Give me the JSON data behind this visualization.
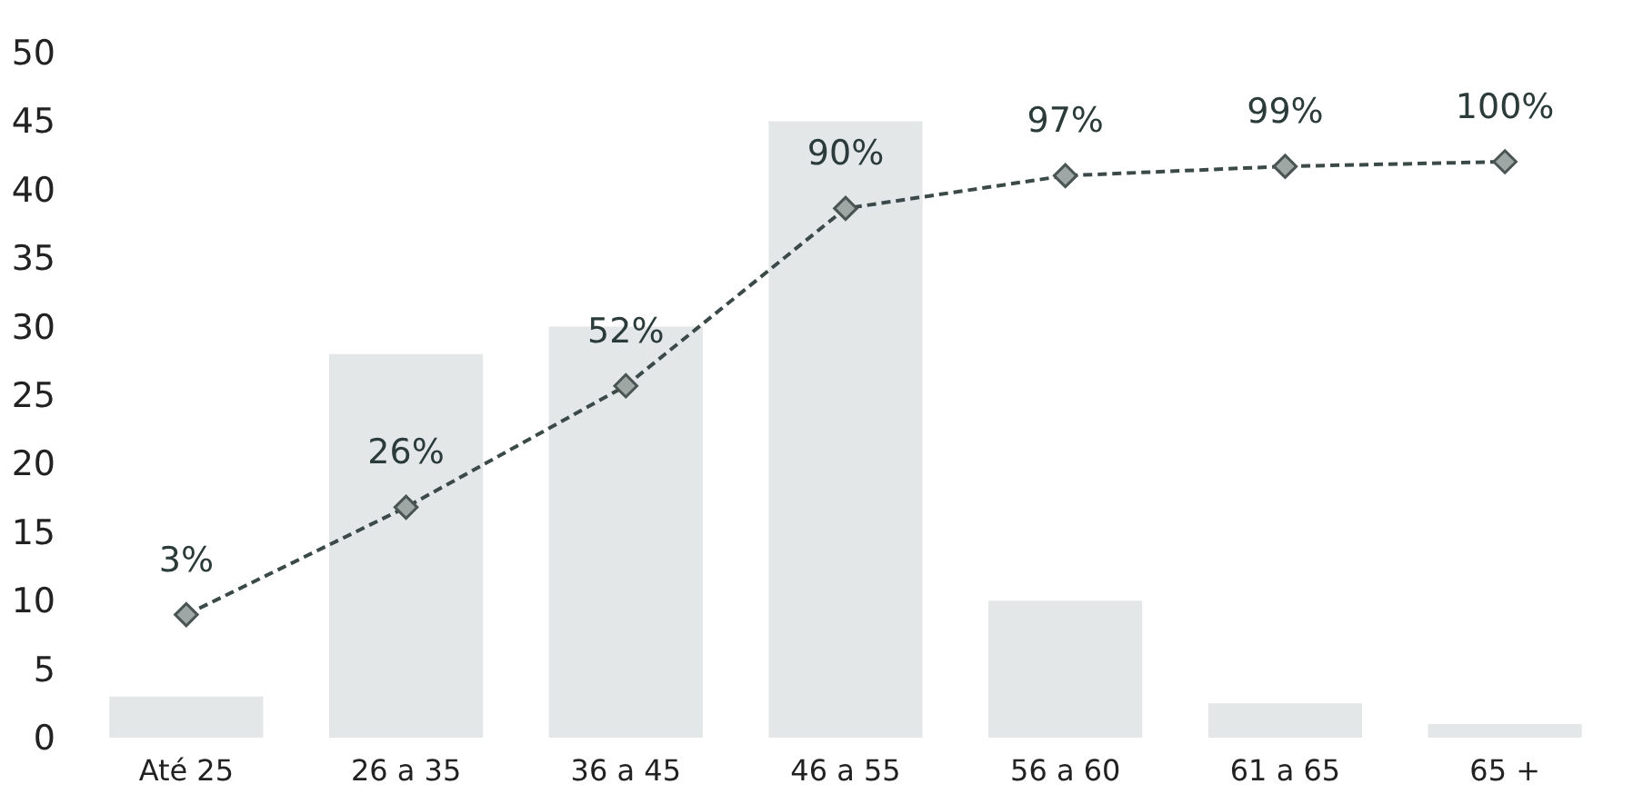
{
  "chart_data": {
    "type": "bar",
    "categories": [
      "Até 25",
      "26 a 35",
      "36 a 45",
      "46 a 55",
      "56 a 60",
      "61 a 65",
      "65 +"
    ],
    "series": [
      {
        "color": "#e4e7e7",
        "values": [
          3,
          28,
          30,
          45,
          10,
          2.5,
          1
        ]
      },
      {
        "type": "line",
        "axis": "y2",
        "color": "#3b4a48",
        "values": [
          3,
          26,
          52,
          90,
          97,
          99,
          100
        ],
        "value_labels": [
          "3%",
          "26%",
          "52%",
          "90%",
          "97%",
          "99%",
          "100%"
        ],
        "marker": "diamond",
        "line_style": "dashed"
      }
    ],
    "ylim": [
      0,
      50
    ],
    "yticks": [
      0,
      5,
      10,
      15,
      20,
      25,
      30,
      35,
      40,
      45,
      50
    ],
    "grid": false
  }
}
